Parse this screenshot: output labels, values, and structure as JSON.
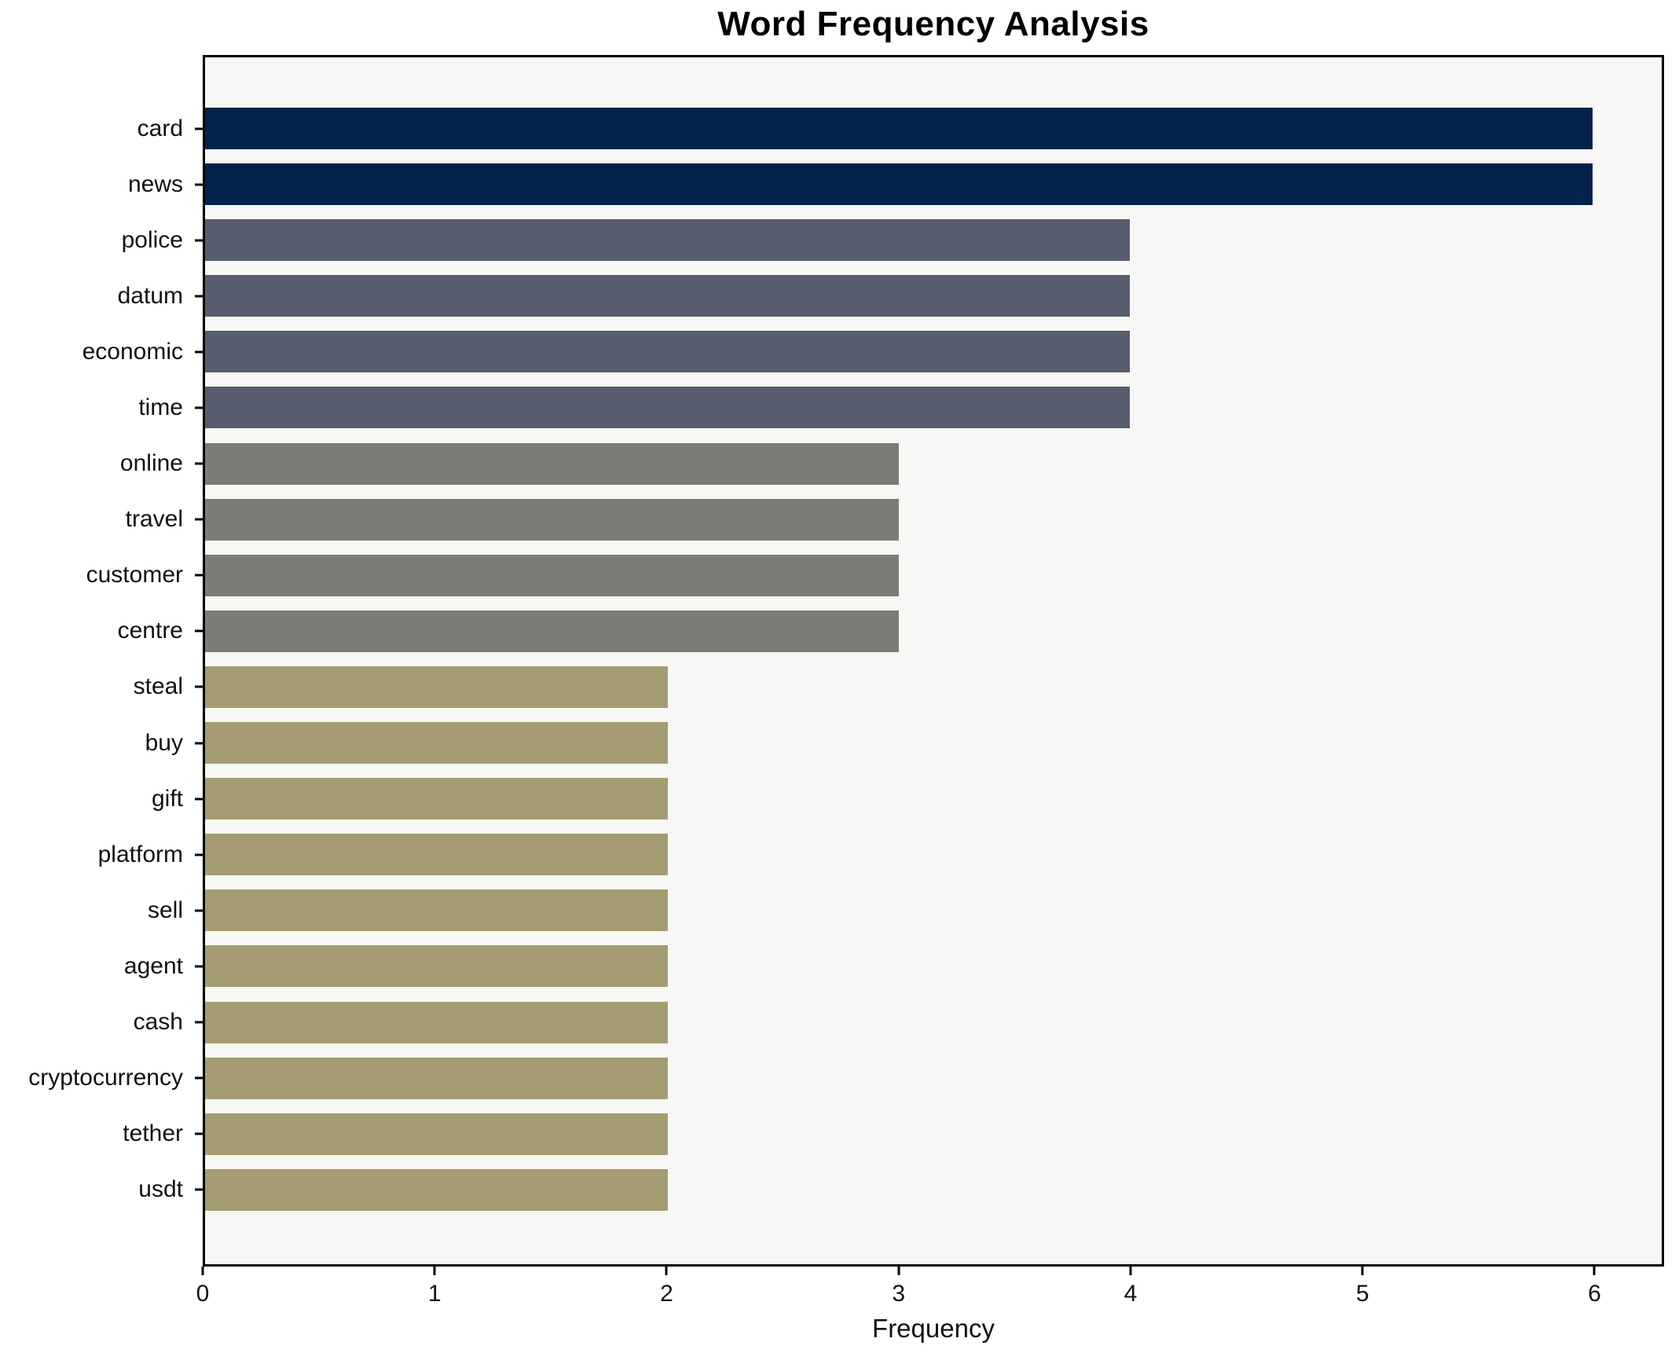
{
  "chart_data": {
    "type": "bar",
    "orientation": "horizontal",
    "title": "Word Frequency Analysis",
    "xlabel": "Frequency",
    "ylabel": "",
    "categories": [
      "card",
      "news",
      "police",
      "datum",
      "economic",
      "time",
      "online",
      "travel",
      "customer",
      "centre",
      "steal",
      "buy",
      "gift",
      "platform",
      "sell",
      "agent",
      "cash",
      "cryptocurrency",
      "tether",
      "usdt"
    ],
    "values": [
      6,
      6,
      4,
      4,
      4,
      4,
      3,
      3,
      3,
      3,
      2,
      2,
      2,
      2,
      2,
      2,
      2,
      2,
      2,
      2
    ],
    "bar_colors": [
      "#03234a",
      "#03234a",
      "#575d6d",
      "#575d6d",
      "#575d6d",
      "#575d6d",
      "#7c7b75",
      "#7c7b75",
      "#7c7b75",
      "#7c7b75",
      "#a59c73",
      "#a59c73",
      "#a59c73",
      "#a59c73",
      "#a59c73",
      "#a59c73",
      "#a59c73",
      "#a59c73",
      "#a59c73",
      "#a59c73"
    ],
    "xticks": [
      0,
      1,
      2,
      3,
      4,
      5,
      6
    ],
    "xlim": [
      0,
      6.3
    ],
    "grid": false,
    "legend_position": "none",
    "colors": {
      "value6": "#03234a",
      "value4": "#575d6d",
      "value3": "#7c7b75",
      "value2": "#a59c73",
      "plot_background": "#f7f7f5",
      "figure_background": "#ffffff",
      "spine": "#000000"
    }
  }
}
